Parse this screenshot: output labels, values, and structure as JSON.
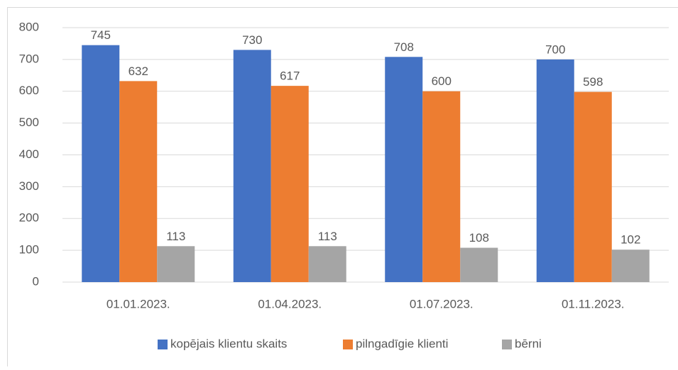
{
  "chart_data": {
    "type": "bar",
    "categories": [
      "01.01.2023.",
      "01.04.2023.",
      "01.07.2023.",
      "01.11.2023."
    ],
    "series": [
      {
        "name": "kopējais klientu skaits",
        "color": "#4472c4",
        "values": [
          745,
          730,
          708,
          700
        ]
      },
      {
        "name": "pilngadīgie klienti",
        "color": "#ed7d31",
        "values": [
          632,
          617,
          600,
          598
        ]
      },
      {
        "name": "bērni",
        "color": "#a5a5a5",
        "values": [
          113,
          113,
          108,
          102
        ]
      }
    ],
    "ylim": [
      0,
      800
    ],
    "yticks": [
      0,
      100,
      200,
      300,
      400,
      500,
      600,
      700,
      800
    ],
    "grid": true,
    "legend": "bottom"
  }
}
